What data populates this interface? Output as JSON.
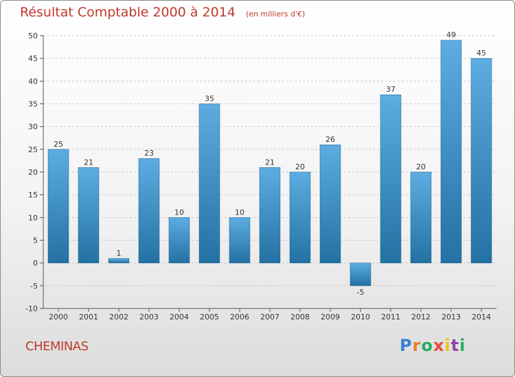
{
  "header": {
    "title": "Résultat Comptable 2000 à 2014",
    "unit": "(en milliers d'€)"
  },
  "commune": "CHEMINAS",
  "logo": {
    "letters": [
      "P",
      "r",
      "o",
      "x",
      "i",
      "t",
      "i"
    ],
    "colors": [
      "#3a7fd5",
      "#e67e22",
      "#27ae60",
      "#e74c3c",
      "#f1c40f",
      "#8e44ad",
      "#27ae60"
    ]
  },
  "chart_data": {
    "type": "bar",
    "categories": [
      "2000",
      "2001",
      "2002",
      "2003",
      "2004",
      "2005",
      "2006",
      "2007",
      "2008",
      "2009",
      "2010",
      "2011",
      "2012",
      "2013",
      "2014"
    ],
    "values": [
      25,
      21,
      1,
      23,
      10,
      35,
      10,
      21,
      20,
      26,
      -5,
      37,
      20,
      49,
      45
    ],
    "title": "Résultat Comptable 2000 à 2014",
    "ylabel": "",
    "xlabel": "",
    "ylim": [
      -10,
      50
    ],
    "yticks": [
      -10,
      -5,
      0,
      5,
      10,
      15,
      20,
      25,
      30,
      35,
      40,
      45,
      50
    ],
    "grid": true,
    "bar_color_light": "#5dade2",
    "bar_color_dark": "#2471a3"
  }
}
